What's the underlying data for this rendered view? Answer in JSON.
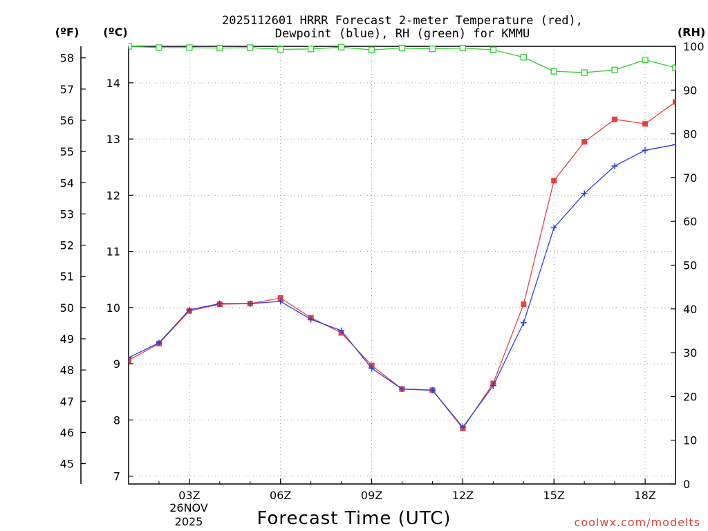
{
  "chart_data": {
    "type": "line",
    "title_line1": "2025112601 HRRR Forecast 2-meter Temperature (red),",
    "title_line2": "Dewpoint (blue), RH (green) for KMMU",
    "axes": {
      "fahrenheit_label": "(ºF)",
      "celsius_label": "(ºC)",
      "rh_label": "(RH)",
      "xlabel": "Forecast Time (UTC)",
      "celsius_range": [
        6.86,
        14.65
      ],
      "rh_range": [
        0,
        100
      ],
      "x_range": [
        1,
        19
      ],
      "fahrenheit_ticks": [
        "45",
        "46",
        "47",
        "48",
        "49",
        "50",
        "51",
        "52",
        "53",
        "54",
        "55",
        "56",
        "57",
        "58"
      ],
      "celsius_ticks": [
        "7",
        "8",
        "9",
        "10",
        "11",
        "12",
        "13",
        "14"
      ],
      "rh_ticks": [
        "0",
        "10",
        "20",
        "30",
        "40",
        "50",
        "60",
        "70",
        "80",
        "90",
        "100"
      ],
      "x_ticks": [
        {
          "hour": 3,
          "label": "03Z"
        },
        {
          "hour": 6,
          "label": "06Z"
        },
        {
          "hour": 9,
          "label": "09Z"
        },
        {
          "hour": 12,
          "label": "12Z"
        },
        {
          "hour": 15,
          "label": "15Z"
        },
        {
          "hour": 18,
          "label": "18Z"
        }
      ],
      "date_line1": "26NOV",
      "date_line2": "2025"
    },
    "x": [
      1,
      2,
      3,
      4,
      5,
      6,
      7,
      8,
      9,
      10,
      11,
      12,
      13,
      14,
      15,
      16,
      17,
      18,
      19
    ],
    "series": [
      {
        "name": "Temperature",
        "unit": "°C",
        "color": "#e8413d",
        "marker": "filled-square",
        "values": [
          9.06,
          9.36,
          9.94,
          10.06,
          10.07,
          10.17,
          9.82,
          9.55,
          8.97,
          8.55,
          8.53,
          7.85,
          8.65,
          10.06,
          12.26,
          12.95,
          13.35,
          13.27,
          13.66
        ]
      },
      {
        "name": "Dewpoint",
        "unit": "°C",
        "color": "#2a3fe0",
        "marker": "plus",
        "values": [
          9.11,
          9.37,
          9.96,
          10.07,
          10.07,
          10.11,
          9.79,
          9.59,
          8.92,
          8.55,
          8.53,
          7.87,
          8.61,
          9.73,
          11.42,
          12.03,
          12.52,
          12.8,
          12.9
        ]
      },
      {
        "name": "RH",
        "unit": "%",
        "color": "#2ccf2c",
        "marker": "open-square",
        "values": [
          100,
          99.7,
          99.7,
          99.6,
          99.7,
          99.3,
          99.4,
          99.8,
          99.2,
          99.6,
          99.4,
          99.6,
          99.2,
          97.5,
          94.3,
          94.0,
          94.6,
          96.9,
          95.1
        ]
      }
    ],
    "credit": "coolwx.com/modelts"
  }
}
